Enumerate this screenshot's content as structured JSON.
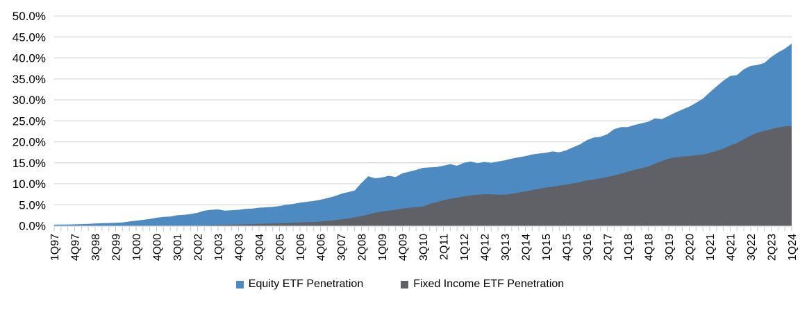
{
  "chart_data": {
    "type": "area",
    "overlap": true,
    "grid": true,
    "legend_position": "bottom",
    "ylim": [
      0,
      50
    ],
    "ytick_step": 5,
    "ytick_labels": [
      "0.0%",
      "5.0%",
      "10.0%",
      "15.0%",
      "20.0%",
      "25.0%",
      "30.0%",
      "35.0%",
      "40.0%",
      "45.0%",
      "50.0%"
    ],
    "gridline_color": "#D9D9D9",
    "tick_color": "#C6C6C6",
    "x_label_every": 3,
    "x_labels": [
      "1Q97",
      "2Q97",
      "3Q97",
      "4Q97",
      "1Q98",
      "2Q98",
      "3Q98",
      "4Q98",
      "1Q99",
      "2Q99",
      "3Q99",
      "4Q99",
      "1Q00",
      "2Q00",
      "3Q00",
      "4Q00",
      "1Q01",
      "2Q01",
      "3Q01",
      "4Q01",
      "1Q02",
      "2Q02",
      "3Q02",
      "4Q02",
      "1Q03",
      "2Q03",
      "3Q03",
      "4Q03",
      "1Q04",
      "2Q04",
      "3Q04",
      "4Q04",
      "1Q05",
      "2Q05",
      "3Q05",
      "4Q05",
      "1Q06",
      "2Q06",
      "3Q06",
      "4Q06",
      "1Q07",
      "2Q07",
      "3Q07",
      "4Q07",
      "1Q08",
      "2Q08",
      "3Q08",
      "4Q08",
      "1Q09",
      "2Q09",
      "3Q09",
      "4Q09",
      "1Q10",
      "2Q10",
      "3Q10",
      "4Q10",
      "1Q11",
      "2Q11",
      "3Q11",
      "4Q11",
      "1Q12",
      "2Q12",
      "3Q12",
      "4Q12",
      "1Q13",
      "2Q13",
      "3Q13",
      "4Q13",
      "1Q14",
      "2Q14",
      "3Q14",
      "4Q14",
      "1Q15",
      "2Q15",
      "3Q15",
      "4Q15",
      "1Q16",
      "2Q16",
      "3Q16",
      "4Q16",
      "1Q17",
      "2Q17",
      "3Q17",
      "4Q17",
      "1Q18",
      "2Q18",
      "3Q18",
      "4Q18",
      "1Q19",
      "2Q19",
      "3Q19",
      "4Q19",
      "1Q20",
      "2Q20",
      "3Q20",
      "4Q20",
      "1Q21",
      "2Q21",
      "3Q21",
      "4Q21",
      "1Q22",
      "2Q22",
      "3Q22",
      "4Q22",
      "1Q23",
      "2Q23",
      "3Q23",
      "4Q23",
      "1Q24"
    ],
    "series": [
      {
        "name": "Equity ETF Penetration",
        "color": "#4E8AC2",
        "values": [
          0.25,
          0.3,
          0.3,
          0.35,
          0.4,
          0.45,
          0.55,
          0.6,
          0.65,
          0.7,
          0.8,
          1.0,
          1.2,
          1.4,
          1.6,
          1.9,
          2.1,
          2.2,
          2.5,
          2.6,
          2.8,
          3.1,
          3.6,
          3.8,
          3.9,
          3.6,
          3.7,
          3.8,
          4.0,
          4.1,
          4.3,
          4.4,
          4.5,
          4.7,
          5.0,
          5.2,
          5.5,
          5.7,
          5.9,
          6.2,
          6.6,
          7.0,
          7.6,
          8.0,
          8.4,
          10.2,
          11.8,
          11.3,
          11.5,
          11.9,
          11.6,
          12.5,
          12.9,
          13.3,
          13.8,
          13.9,
          14.0,
          14.3,
          14.7,
          14.3,
          15.0,
          15.3,
          14.9,
          15.2,
          15.0,
          15.3,
          15.6,
          16.0,
          16.3,
          16.6,
          17.0,
          17.2,
          17.4,
          17.7,
          17.5,
          18.0,
          18.7,
          19.4,
          20.4,
          21.0,
          21.2,
          21.8,
          23.0,
          23.5,
          23.5,
          24.0,
          24.4,
          24.8,
          25.6,
          25.4,
          26.2,
          27.0,
          27.7,
          28.4,
          29.3,
          30.3,
          31.8,
          33.2,
          34.6,
          35.7,
          35.9,
          37.3,
          38.1,
          38.3,
          38.8,
          40.2,
          41.3,
          42.2,
          43.4
        ]
      },
      {
        "name": "Fixed Income ETF Penetration",
        "color": "#5F6166",
        "values": [
          0,
          0,
          0,
          0,
          0,
          0,
          0,
          0,
          0,
          0,
          0,
          0,
          0,
          0,
          0,
          0,
          0,
          0,
          0,
          0,
          0,
          0,
          0.05,
          0.1,
          0.15,
          0.2,
          0.25,
          0.3,
          0.35,
          0.4,
          0.45,
          0.5,
          0.55,
          0.6,
          0.65,
          0.7,
          0.8,
          0.85,
          0.9,
          1.0,
          1.1,
          1.3,
          1.5,
          1.7,
          2.0,
          2.3,
          2.7,
          3.1,
          3.4,
          3.6,
          3.8,
          4.1,
          4.3,
          4.4,
          4.6,
          5.2,
          5.6,
          6.1,
          6.4,
          6.7,
          7.0,
          7.2,
          7.4,
          7.5,
          7.5,
          7.4,
          7.4,
          7.6,
          7.9,
          8.2,
          8.5,
          8.8,
          9.1,
          9.3,
          9.6,
          9.8,
          10.1,
          10.4,
          10.8,
          11.0,
          11.3,
          11.6,
          12.0,
          12.4,
          12.9,
          13.3,
          13.7,
          14.1,
          14.8,
          15.4,
          16.0,
          16.3,
          16.5,
          16.6,
          16.8,
          17.0,
          17.4,
          17.8,
          18.4,
          19.1,
          19.7,
          20.6,
          21.5,
          22.2,
          22.6,
          23.0,
          23.4,
          23.7,
          23.8
        ]
      }
    ]
  }
}
